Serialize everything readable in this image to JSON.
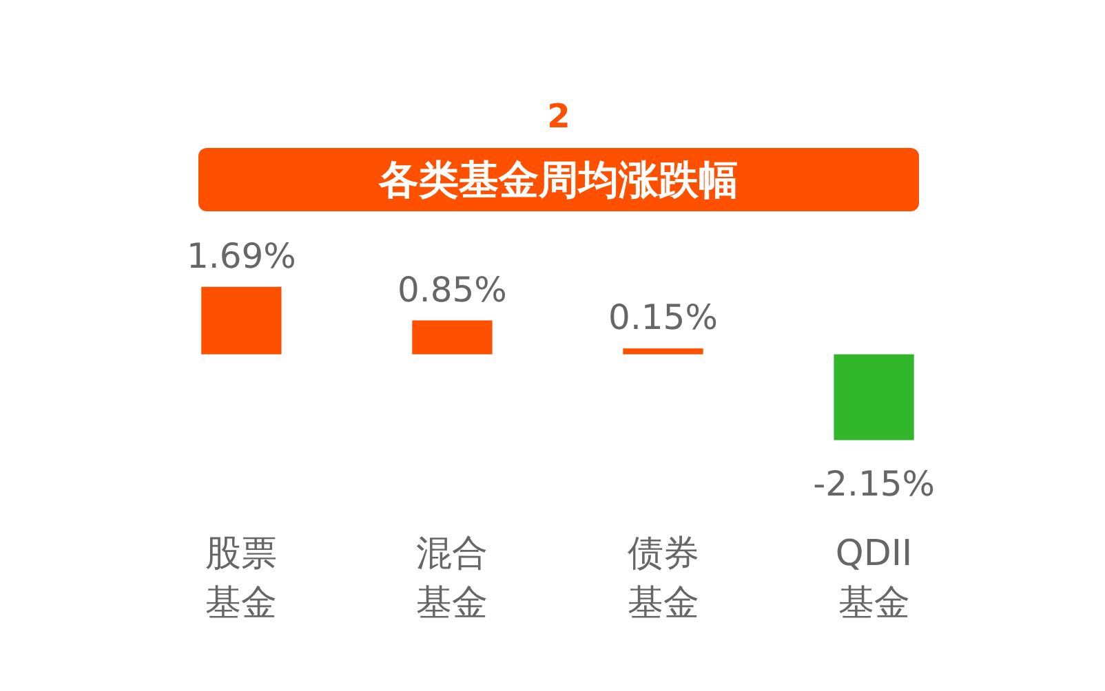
{
  "chart_data": {
    "type": "bar",
    "title": "各类基金周均涨跌幅",
    "annotations": [
      "2"
    ],
    "categories": [
      "股票基金",
      "混合基金",
      "债券基金",
      "QDII基金"
    ],
    "values": [
      1.69,
      0.85,
      0.15,
      -2.15
    ],
    "colors": [
      "#ff5000",
      "#ff5000",
      "#ff5000",
      "#33b72a"
    ],
    "value_labels": [
      "1.69%",
      "0.85%",
      "0.15%",
      "-2.15%"
    ],
    "grid": false
  }
}
